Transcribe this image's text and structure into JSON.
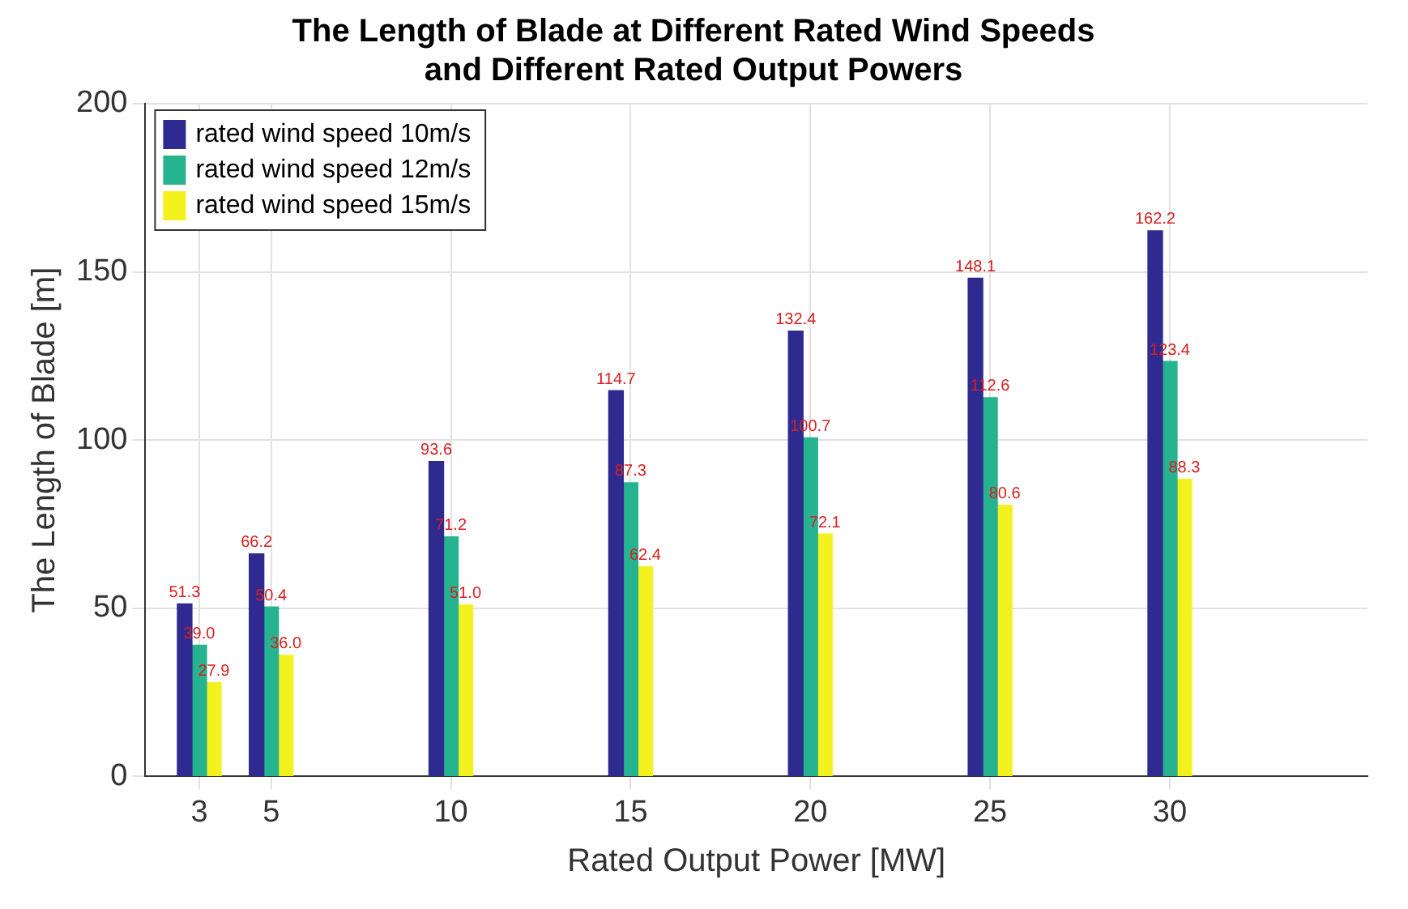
{
  "chart_data": {
    "type": "bar",
    "title": "The Length of Blade at Different Rated Wind Speeds\nand Different Rated Output Powers",
    "xlabel": "Rated Output Power [MW]",
    "ylabel": "The Length of Blade [m]",
    "x": [
      3,
      5,
      10,
      15,
      20,
      25,
      30
    ],
    "series": [
      {
        "name": "rated wind speed 10m/s",
        "color": "#2e2a8f",
        "values": [
          51.3,
          66.2,
          93.6,
          114.7,
          132.4,
          148.1,
          162.2
        ],
        "value_labels": [
          "51.3",
          "66.2",
          "93.6",
          "114.7",
          "132.4",
          "148.1",
          "162.2"
        ]
      },
      {
        "name": "rated wind speed 12m/s",
        "color": "#26b38f",
        "values": [
          39.0,
          50.4,
          71.2,
          87.3,
          100.7,
          112.6,
          123.4
        ],
        "value_labels": [
          "39.0",
          "50.4",
          "71.2",
          "87.3",
          "100.7",
          "112.6",
          "123.4"
        ]
      },
      {
        "name": "rated wind speed 15m/s",
        "color": "#f4f21e",
        "values": [
          27.9,
          36.0,
          51.0,
          62.4,
          72.1,
          80.6,
          88.3
        ],
        "value_labels": [
          "27.9",
          "36.0",
          "51.0",
          "62.4",
          "72.1",
          "80.6",
          "88.3"
        ]
      }
    ],
    "xlim": [
      1.5,
      35.5
    ],
    "xticks": [
      3,
      5,
      10,
      15,
      20,
      25,
      30
    ],
    "ylim": [
      0,
      200
    ],
    "yticks": [
      0,
      50,
      100,
      150,
      200
    ],
    "grid": true,
    "legend": "top left"
  }
}
